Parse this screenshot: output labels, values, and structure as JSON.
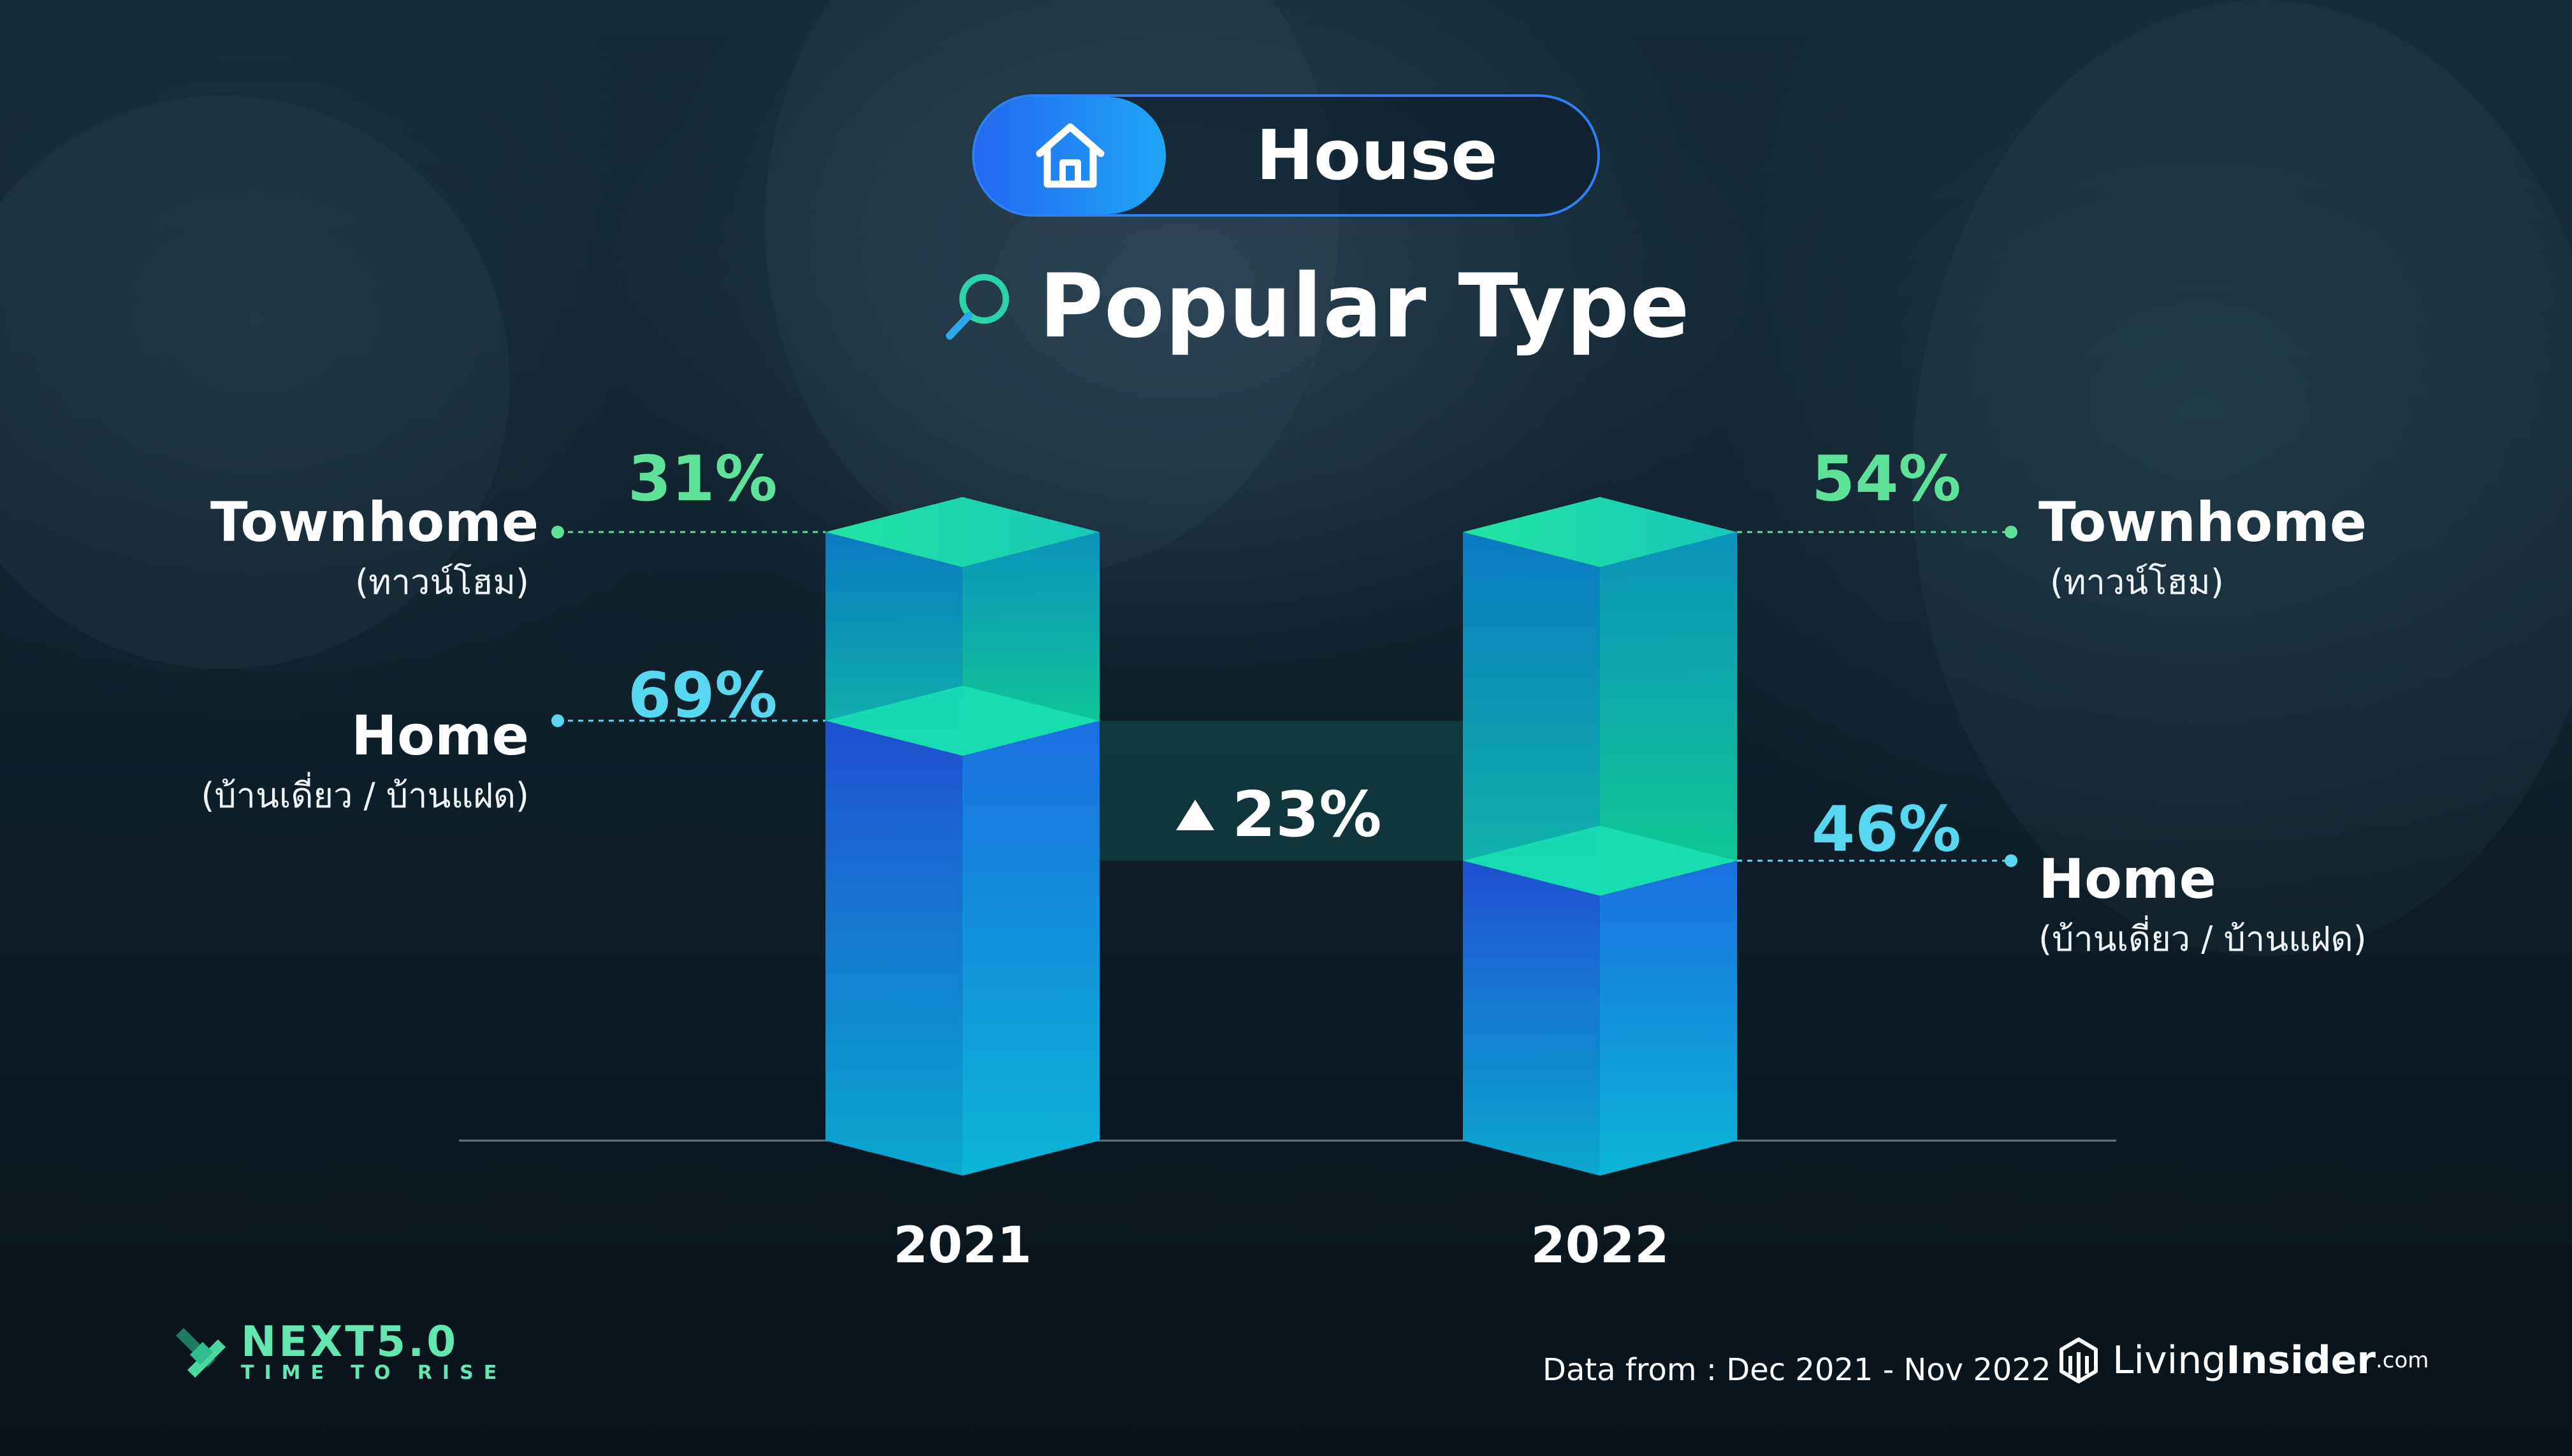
{
  "header": {
    "badge_label": "House",
    "title": "Popular Type",
    "badge_icon": "home-icon",
    "title_icon": "search-icon"
  },
  "chart_data": {
    "type": "bar",
    "stacked": true,
    "categories": [
      "2021",
      "2022"
    ],
    "series": [
      {
        "name": "Home",
        "sub": "(บ้านเดี่ยว / บ้านแฝด)",
        "values": [
          69,
          46
        ],
        "color": "#1f8fdc"
      },
      {
        "name": "Townhome",
        "sub": "(ทาวน์โฮม)",
        "values": [
          31,
          54
        ],
        "color": "#13d59c"
      }
    ],
    "value_labels": {
      "2021": {
        "Townhome": "31%",
        "Home": "69%"
      },
      "2022": {
        "Townhome": "54%",
        "Home": "46%"
      }
    },
    "change_annotation": "23%",
    "change_direction": "up",
    "ylim": [
      0,
      100
    ]
  },
  "footer": {
    "event_name": "NEXT5.0",
    "event_tagline": "TIME TO RISE",
    "source_note": "Data from : Dec 2021 - Nov 2022",
    "brand_part1": "Living",
    "brand_part2": "Insider",
    "brand_suffix": ".com"
  },
  "colors": {
    "accent_blue": "#2f7ff5",
    "accent_green": "#5ee29a",
    "accent_cyan": "#57d7f0",
    "brand_green": "#63e6b0"
  }
}
